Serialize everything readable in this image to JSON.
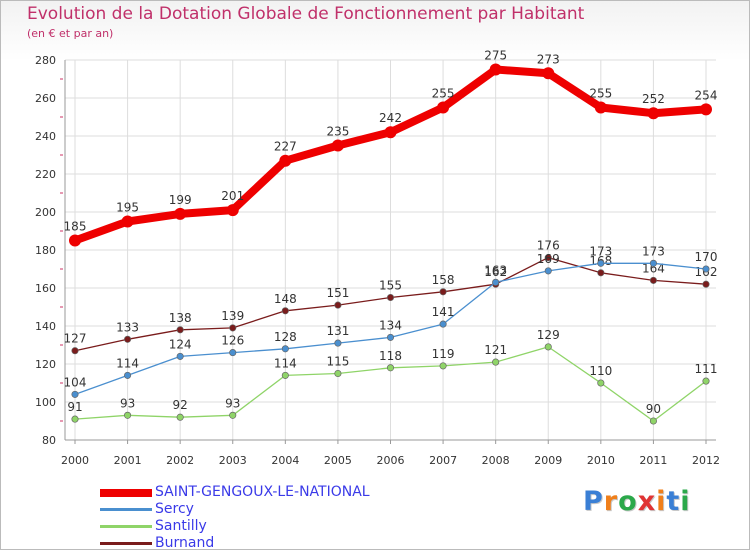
{
  "chart_data": {
    "type": "line",
    "title": "Evolution de la Dotation Globale de Fonctionnement par Habitant",
    "subtitle": "(en € et par an)",
    "xlabel": "",
    "ylabel": "",
    "ylim": [
      80,
      280
    ],
    "yticks": [
      80,
      100,
      120,
      140,
      160,
      180,
      200,
      220,
      240,
      260,
      280
    ],
    "categories": [
      "2000",
      "2001",
      "2002",
      "2003",
      "2004",
      "2005",
      "2006",
      "2007",
      "2008",
      "2009",
      "2010",
      "2011",
      "2012"
    ],
    "grid": true,
    "legend_position": "bottom-left",
    "series": [
      {
        "name": "SAINT-GENGOUX-LE-NATIONAL",
        "color": "#ee0000",
        "values": [
          185,
          195,
          199,
          201,
          227,
          235,
          242,
          255,
          275,
          273,
          255,
          252,
          254
        ]
      },
      {
        "name": "Sercy",
        "color": "#4a8fcf",
        "values": [
          104,
          114,
          124,
          126,
          128,
          131,
          134,
          141,
          163,
          169,
          173,
          173,
          170
        ]
      },
      {
        "name": "Santilly",
        "color": "#8fd468",
        "values": [
          91,
          93,
          92,
          93,
          114,
          115,
          118,
          119,
          121,
          129,
          110,
          90,
          111
        ]
      },
      {
        "name": "Burnand",
        "color": "#7a1c1c",
        "values": [
          127,
          133,
          138,
          139,
          148,
          151,
          155,
          158,
          162,
          176,
          168,
          164,
          162
        ]
      }
    ]
  },
  "logo": {
    "letters": [
      "P",
      "r",
      "o",
      "x",
      "i",
      "t",
      "i"
    ],
    "colors": [
      "#3a7fd5",
      "#f07f1a",
      "#2ba84a",
      "#e03333",
      "#f07f1a",
      "#3a7fd5",
      "#2ba84a"
    ]
  }
}
